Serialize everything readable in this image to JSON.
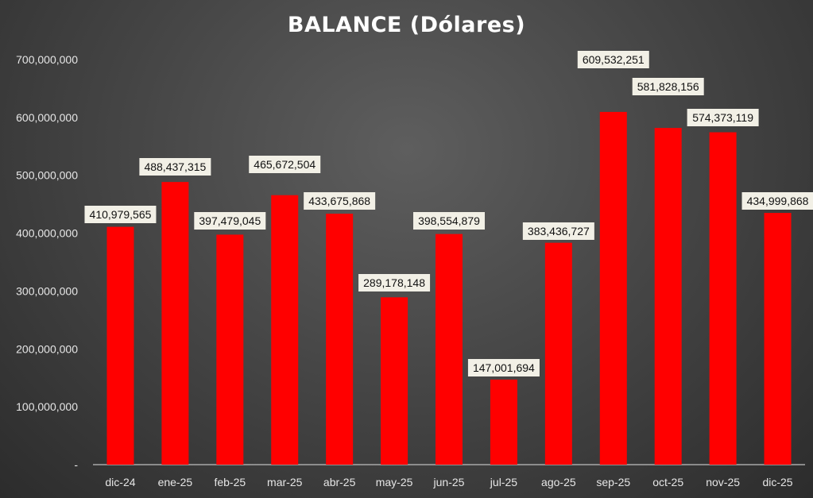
{
  "chart_data": {
    "type": "bar",
    "title": "BALANCE (Dólares)",
    "xlabel": "",
    "ylabel": "",
    "categories": [
      "dic-24",
      "ene-25",
      "feb-25",
      "mar-25",
      "abr-25",
      "may-25",
      "jun-25",
      "jul-25",
      "ago-25",
      "sep-25",
      "oct-25",
      "nov-25",
      "dic-25"
    ],
    "series": [
      {
        "values": [
          410979565,
          488437315,
          397479045,
          465672504,
          433675868,
          289178148,
          398554879,
          147001694,
          383436727,
          609532251,
          581828156,
          574373119,
          434999868
        ],
        "labels": [
          "410,979,565",
          "488,437,315",
          "397,479,045",
          "465,672,504",
          "433,675,868",
          "289,178,148",
          "398,554,879",
          "147,001,694",
          "383,436,727",
          "609,532,251",
          "581,828,156",
          "574,373,119",
          "434,999,868"
        ]
      }
    ],
    "ylim": [
      0,
      700000000
    ],
    "yticks": [
      0,
      100000000,
      200000000,
      300000000,
      400000000,
      500000000,
      600000000,
      700000000
    ],
    "ytick_labels": [
      "-",
      "100,000,000",
      "200,000,000",
      "300,000,000",
      "400,000,000",
      "500,000,000",
      "600,000,000",
      "700,000,000"
    ],
    "grid": false,
    "legend": "none",
    "colors": {
      "bar": "#ff0000",
      "label_box": "#f2f0e6",
      "text": "#e6e6e6",
      "title": "#ffffff"
    }
  }
}
